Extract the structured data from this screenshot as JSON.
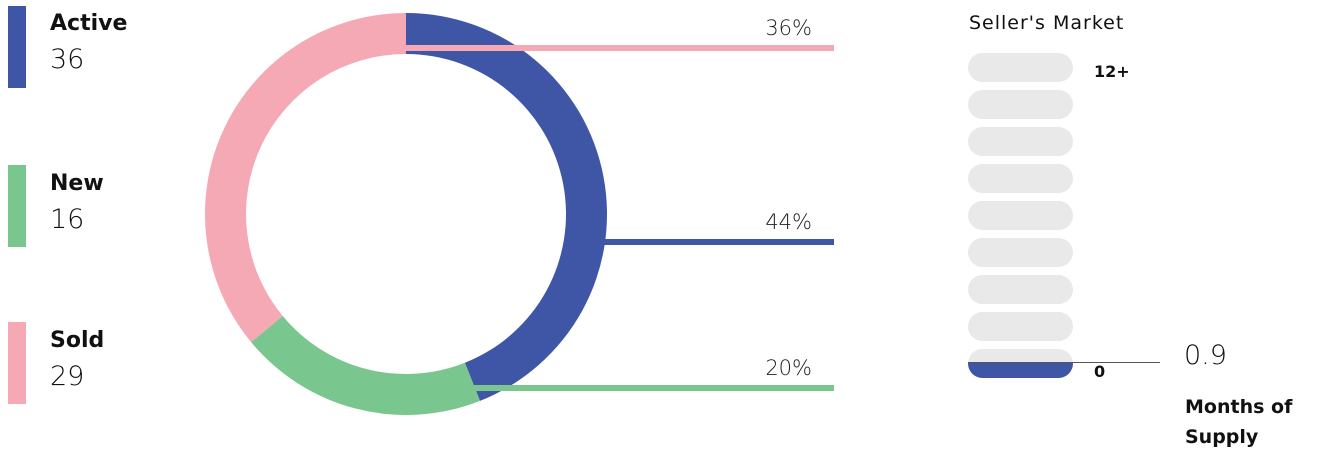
{
  "colors": {
    "active": "#3f55a6",
    "new": "#79c68e",
    "sold": "#f5a9b5",
    "pill": "#e9e9e9"
  },
  "legend": [
    {
      "key": "active",
      "label": "Active",
      "value": "36"
    },
    {
      "key": "new",
      "label": "New",
      "value": "16"
    },
    {
      "key": "sold",
      "label": "Sold",
      "value": "29"
    }
  ],
  "chart_data": [
    {
      "type": "pie",
      "variant": "donut",
      "categories": [
        "Active",
        "New",
        "Sold"
      ],
      "values": [
        44,
        20,
        36
      ],
      "labels": [
        "44%",
        "20%",
        "36%"
      ],
      "colors": [
        "#3f55a6",
        "#79c68e",
        "#f5a9b5"
      ]
    },
    {
      "type": "bar",
      "title": "Seller's Market",
      "scale_max_label": "12+",
      "scale_min_label": "0",
      "value": 0.9,
      "value_label": "0.9",
      "caption": "Months of Supply"
    }
  ]
}
